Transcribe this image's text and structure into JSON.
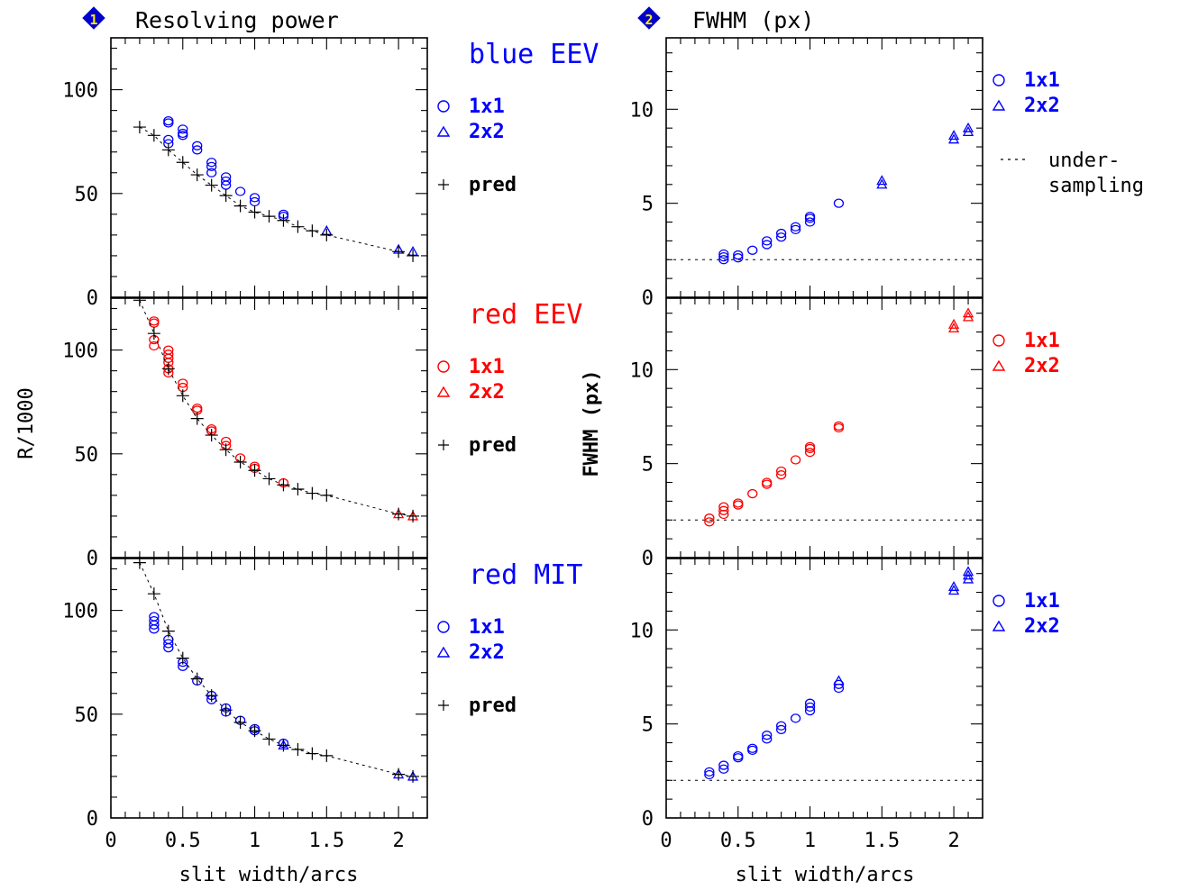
{
  "panels": {
    "left": {
      "badge": "1",
      "title": "Resolving power",
      "ylabel": "R/1000",
      "xlabel": "slit width/arcs"
    },
    "right": {
      "badge": "2",
      "title": "FWHM (px)",
      "ylabel": "FWHM (px)",
      "xlabel": "slit width/arcs"
    }
  },
  "colors": {
    "blue": "#0000ff",
    "red": "#ff0000",
    "pred": "#000000",
    "badge": "#0000cc",
    "badge_text": "#ffee00"
  },
  "legend": {
    "binning_1x1": "1x1",
    "binning_2x2": "2x2",
    "pred": "pred",
    "undersampling_1": "under-",
    "undersampling_2": "sampling"
  },
  "chart_data": [
    {
      "type": "scatter",
      "id": "R_blue_EEV",
      "title": "blue EEV",
      "color": "blue",
      "xlim": [
        0,
        2.2
      ],
      "ylim": [
        0,
        125
      ],
      "xticks": [
        "0",
        "0.5",
        "1",
        "1.5",
        "2"
      ],
      "yticks": [
        "0",
        "50",
        "100"
      ],
      "series": [
        {
          "name": "1x1",
          "marker": "circle",
          "points": [
            [
              0.4,
              84
            ],
            [
              0.4,
              85
            ],
            [
              0.4,
              76
            ],
            [
              0.4,
              74
            ],
            [
              0.5,
              81
            ],
            [
              0.5,
              79
            ],
            [
              0.5,
              78
            ],
            [
              0.6,
              73
            ],
            [
              0.6,
              71
            ],
            [
              0.7,
              65
            ],
            [
              0.7,
              63
            ],
            [
              0.7,
              60
            ],
            [
              0.8,
              58
            ],
            [
              0.8,
              56
            ],
            [
              0.8,
              54
            ],
            [
              0.9,
              51
            ],
            [
              1.0,
              48
            ],
            [
              1.0,
              46
            ],
            [
              1.2,
              40
            ],
            [
              1.2,
              39
            ]
          ]
        },
        {
          "name": "2x2",
          "marker": "triangle",
          "points": [
            [
              1.5,
              32
            ],
            [
              2.0,
              23
            ],
            [
              2.1,
              22
            ]
          ]
        },
        {
          "name": "pred",
          "marker": "plus",
          "points": [
            [
              0.2,
              82
            ],
            [
              0.3,
              78
            ],
            [
              0.4,
              71
            ],
            [
              0.5,
              65
            ],
            [
              0.6,
              59
            ],
            [
              0.7,
              54
            ],
            [
              0.8,
              49
            ],
            [
              0.9,
              44
            ],
            [
              1.0,
              41
            ],
            [
              1.1,
              39
            ],
            [
              1.2,
              37
            ],
            [
              1.3,
              34
            ],
            [
              1.4,
              32
            ],
            [
              1.5,
              30
            ],
            [
              2.0,
              22
            ],
            [
              2.1,
              20
            ]
          ]
        }
      ]
    },
    {
      "type": "scatter",
      "id": "R_red_EEV",
      "title": "red EEV",
      "color": "red",
      "xlim": [
        0,
        2.2
      ],
      "ylim": [
        0,
        125
      ],
      "xticks": [
        "0",
        "0.5",
        "1",
        "1.5",
        "2"
      ],
      "yticks": [
        "0",
        "50",
        "100"
      ],
      "series": [
        {
          "name": "1x1",
          "marker": "circle",
          "points": [
            [
              0.3,
              114
            ],
            [
              0.3,
              113
            ],
            [
              0.3,
              105
            ],
            [
              0.3,
              102
            ],
            [
              0.4,
              100
            ],
            [
              0.4,
              98
            ],
            [
              0.4,
              96
            ],
            [
              0.4,
              94
            ],
            [
              0.4,
              91
            ],
            [
              0.4,
              89
            ],
            [
              0.5,
              84
            ],
            [
              0.5,
              82
            ],
            [
              0.6,
              72
            ],
            [
              0.6,
              71
            ],
            [
              0.7,
              62
            ],
            [
              0.7,
              61
            ],
            [
              0.8,
              56
            ],
            [
              0.8,
              54
            ],
            [
              0.9,
              48
            ],
            [
              1.0,
              44
            ],
            [
              1.0,
              43
            ],
            [
              1.2,
              36
            ]
          ]
        },
        {
          "name": "2x2",
          "marker": "triangle",
          "points": [
            [
              2.0,
              21
            ],
            [
              2.1,
              20
            ]
          ]
        },
        {
          "name": "pred",
          "marker": "plus",
          "points": [
            [
              0.2,
              124
            ],
            [
              0.3,
              108
            ],
            [
              0.4,
              91
            ],
            [
              0.5,
              78
            ],
            [
              0.6,
              67
            ],
            [
              0.7,
              59
            ],
            [
              0.8,
              52
            ],
            [
              0.9,
              46
            ],
            [
              1.0,
              42
            ],
            [
              1.1,
              38
            ],
            [
              1.2,
              35
            ],
            [
              1.3,
              33
            ],
            [
              1.4,
              31
            ],
            [
              1.5,
              30
            ],
            [
              2.0,
              21
            ],
            [
              2.1,
              20
            ]
          ]
        }
      ]
    },
    {
      "type": "scatter",
      "id": "R_red_MIT",
      "title": "red MIT",
      "color": "blue",
      "xlim": [
        0,
        2.2
      ],
      "ylim": [
        0,
        125
      ],
      "xticks": [
        "0",
        "0.5",
        "1",
        "1.5",
        "2"
      ],
      "yticks": [
        "0",
        "50",
        "100"
      ],
      "series": [
        {
          "name": "1x1",
          "marker": "circle",
          "points": [
            [
              0.3,
              97
            ],
            [
              0.3,
              95
            ],
            [
              0.3,
              93
            ],
            [
              0.3,
              91
            ],
            [
              0.4,
              86
            ],
            [
              0.4,
              84
            ],
            [
              0.4,
              82
            ],
            [
              0.5,
              75
            ],
            [
              0.5,
              73
            ],
            [
              0.6,
              66
            ],
            [
              0.7,
              59
            ],
            [
              0.7,
              57
            ],
            [
              0.8,
              53
            ],
            [
              0.8,
              51
            ],
            [
              0.9,
              47
            ],
            [
              1.0,
              43
            ],
            [
              1.0,
              42
            ],
            [
              1.2,
              36
            ]
          ]
        },
        {
          "name": "2x2",
          "marker": "triangle",
          "points": [
            [
              1.2,
              35
            ],
            [
              2.0,
              21
            ],
            [
              2.1,
              20
            ]
          ]
        },
        {
          "name": "pred",
          "marker": "plus",
          "points": [
            [
              0.2,
              123
            ],
            [
              0.3,
              108
            ],
            [
              0.4,
              90
            ],
            [
              0.5,
              77
            ],
            [
              0.6,
              67
            ],
            [
              0.7,
              59
            ],
            [
              0.8,
              52
            ],
            [
              0.9,
              46
            ],
            [
              1.0,
              42
            ],
            [
              1.1,
              38
            ],
            [
              1.2,
              35
            ],
            [
              1.3,
              33
            ],
            [
              1.4,
              31
            ],
            [
              1.5,
              30
            ],
            [
              2.0,
              21
            ],
            [
              2.1,
              20
            ]
          ]
        }
      ]
    },
    {
      "type": "scatter",
      "id": "FWHM_blue_EEV",
      "color": "blue",
      "xlim": [
        0,
        2.2
      ],
      "ylim": [
        0,
        13.8
      ],
      "xticks": [
        "0",
        "0.5",
        "1",
        "1.5",
        "2"
      ],
      "yticks": [
        "0",
        "5",
        "10"
      ],
      "undersampling": 2,
      "series": [
        {
          "name": "1x1",
          "marker": "circle",
          "points": [
            [
              0.4,
              2.0
            ],
            [
              0.4,
              2.15
            ],
            [
              0.4,
              2.3
            ],
            [
              0.5,
              2.1
            ],
            [
              0.5,
              2.25
            ],
            [
              0.6,
              2.5
            ],
            [
              0.7,
              2.8
            ],
            [
              0.7,
              3.0
            ],
            [
              0.8,
              3.2
            ],
            [
              0.8,
              3.4
            ],
            [
              0.9,
              3.6
            ],
            [
              0.9,
              3.75
            ],
            [
              1.0,
              4.0
            ],
            [
              1.0,
              4.2
            ],
            [
              1.0,
              4.3
            ],
            [
              1.2,
              5.0
            ]
          ]
        },
        {
          "name": "2x2",
          "marker": "triangle",
          "points": [
            [
              1.5,
              6.0
            ],
            [
              1.5,
              6.2
            ],
            [
              2.0,
              8.4
            ],
            [
              2.0,
              8.6
            ],
            [
              2.1,
              8.8
            ],
            [
              2.1,
              9.0
            ]
          ]
        }
      ]
    },
    {
      "type": "scatter",
      "id": "FWHM_red_EEV",
      "color": "red",
      "xlim": [
        0,
        2.2
      ],
      "ylim": [
        0,
        13.8
      ],
      "xticks": [
        "0",
        "0.5",
        "1",
        "1.5",
        "2"
      ],
      "yticks": [
        "0",
        "5",
        "10"
      ],
      "undersampling": 2,
      "series": [
        {
          "name": "1x1",
          "marker": "circle",
          "points": [
            [
              0.3,
              1.9
            ],
            [
              0.3,
              2.1
            ],
            [
              0.4,
              2.3
            ],
            [
              0.4,
              2.5
            ],
            [
              0.4,
              2.7
            ],
            [
              0.5,
              2.8
            ],
            [
              0.5,
              2.9
            ],
            [
              0.6,
              3.4
            ],
            [
              0.7,
              3.9
            ],
            [
              0.7,
              4.0
            ],
            [
              0.8,
              4.4
            ],
            [
              0.8,
              4.6
            ],
            [
              0.9,
              5.2
            ],
            [
              1.0,
              5.6
            ],
            [
              1.0,
              5.8
            ],
            [
              1.0,
              5.9
            ],
            [
              1.2,
              6.9
            ],
            [
              1.2,
              7.0
            ]
          ]
        },
        {
          "name": "2x2",
          "marker": "triangle",
          "points": [
            [
              2.0,
              12.2
            ],
            [
              2.0,
              12.4
            ],
            [
              2.1,
              12.8
            ],
            [
              2.1,
              13.0
            ]
          ]
        }
      ]
    },
    {
      "type": "scatter",
      "id": "FWHM_red_MIT",
      "color": "blue",
      "xlim": [
        0,
        2.2
      ],
      "ylim": [
        0,
        13.8
      ],
      "xticks": [
        "0",
        "0.5",
        "1",
        "1.5",
        "2"
      ],
      "yticks": [
        "0",
        "5",
        "10"
      ],
      "undersampling": 2,
      "series": [
        {
          "name": "1x1",
          "marker": "circle",
          "points": [
            [
              0.3,
              2.3
            ],
            [
              0.3,
              2.45
            ],
            [
              0.4,
              2.6
            ],
            [
              0.4,
              2.8
            ],
            [
              0.5,
              3.2
            ],
            [
              0.5,
              3.3
            ],
            [
              0.6,
              3.6
            ],
            [
              0.6,
              3.7
            ],
            [
              0.7,
              4.2
            ],
            [
              0.7,
              4.4
            ],
            [
              0.8,
              4.7
            ],
            [
              0.8,
              4.9
            ],
            [
              0.9,
              5.3
            ],
            [
              1.0,
              5.7
            ],
            [
              1.0,
              5.9
            ],
            [
              1.0,
              6.1
            ],
            [
              1.2,
              6.9
            ],
            [
              1.2,
              7.1
            ]
          ]
        },
        {
          "name": "2x2",
          "marker": "triangle",
          "points": [
            [
              1.2,
              7.3
            ],
            [
              2.0,
              12.1
            ],
            [
              2.0,
              12.3
            ],
            [
              2.1,
              12.7
            ],
            [
              2.1,
              12.9
            ],
            [
              2.1,
              13.1
            ]
          ]
        }
      ]
    }
  ]
}
